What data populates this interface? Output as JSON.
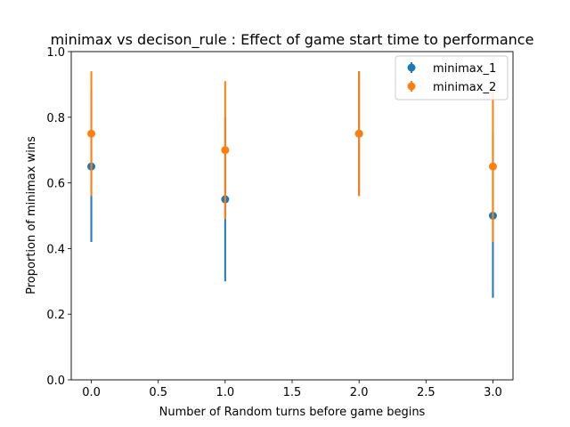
{
  "chart_data": {
    "type": "scatter",
    "title": "minimax vs decison_rule : Effect of game start time to performance",
    "xlabel": "Number of Random turns before game begins",
    "ylabel": "Proportion of minimax wins",
    "xlim": [
      -0.15,
      3.15
    ],
    "ylim": [
      0.0,
      1.0
    ],
    "xticks": [
      0.0,
      0.5,
      1.0,
      1.5,
      2.0,
      2.5,
      3.0
    ],
    "xtick_labels": [
      "0.0",
      "0.5",
      "1.0",
      "1.5",
      "2.0",
      "2.5",
      "3.0"
    ],
    "yticks": [
      0.0,
      0.2,
      0.4,
      0.6,
      0.8,
      1.0
    ],
    "ytick_labels": [
      "0.0",
      "0.2",
      "0.4",
      "0.6",
      "0.8",
      "1.0"
    ],
    "grid": false,
    "legend_position": "top-right",
    "series": [
      {
        "name": "minimax_1",
        "color": "#1f77b4",
        "points": [
          {
            "x": 0,
            "y": 0.65,
            "err_low": 0.42,
            "err_high": 0.88
          },
          {
            "x": 1,
            "y": 0.55,
            "err_low": 0.3,
            "err_high": 0.8
          },
          {
            "x": 2,
            "y": 0.75,
            "err_low": 0.56,
            "err_high": 0.94
          },
          {
            "x": 3,
            "y": 0.5,
            "err_low": 0.25,
            "err_high": 0.75
          }
        ]
      },
      {
        "name": "minimax_2",
        "color": "#ff7f0e",
        "points": [
          {
            "x": 0,
            "y": 0.75,
            "err_low": 0.56,
            "err_high": 0.94
          },
          {
            "x": 1,
            "y": 0.7,
            "err_low": 0.49,
            "err_high": 0.91
          },
          {
            "x": 2,
            "y": 0.75,
            "err_low": 0.56,
            "err_high": 0.94
          },
          {
            "x": 3,
            "y": 0.65,
            "err_low": 0.42,
            "err_high": 0.88
          }
        ]
      }
    ]
  }
}
